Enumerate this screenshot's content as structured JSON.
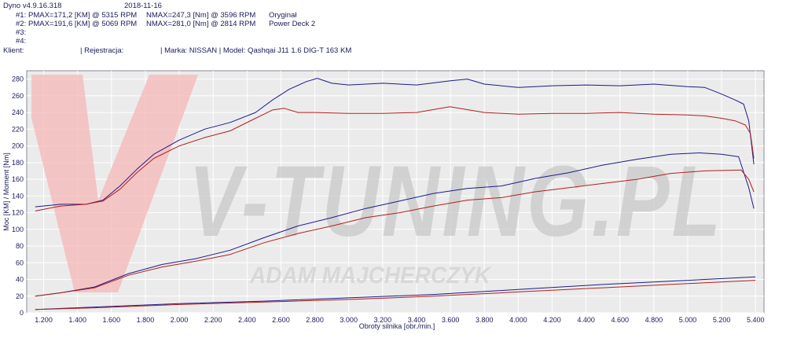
{
  "header": {
    "app_version": "Dyno v4.9.16.318",
    "date": "2018-11-16",
    "runs": [
      {
        "label": "#1:",
        "pmax": "PMAX=171,2 [KM] @ 5315 RPM",
        "nmax": "NMAX=247,3 [Nm] @ 3596 RPM",
        "name": "Oryginał"
      },
      {
        "label": "#2:",
        "pmax": "PMAX=191,6 [KM] @ 5069 RPM",
        "nmax": "NMAX=281,0 [Nm] @ 2814 RPM",
        "name": "Power Deck 2"
      },
      {
        "label": "#3:",
        "pmax": "",
        "nmax": "",
        "name": ""
      },
      {
        "label": "#4:",
        "pmax": "",
        "nmax": "",
        "name": ""
      }
    ],
    "client_label": "Klient:",
    "registration_label": "| Rejestracja:",
    "make_model": "| Marka: NISSAN | Model: Qashqai J11 1.6 DIG-T 163 KM"
  },
  "watermark": {
    "brand": "V-TUNING.PL",
    "name": "ADAM MAJCHERCZYK"
  },
  "colors": {
    "run1": "#b02020",
    "run2": "#1c1c8a",
    "plot_bg": "#ebebeb",
    "grid": "#ffffff"
  },
  "chart_data": {
    "type": "line",
    "title": "",
    "xlabel": "Obroty silnika [obr./min.]",
    "ylabel": "Moc [KM] / Moment [Nm]",
    "xlim": [
      1100,
      5450
    ],
    "ylim": [
      0,
      290
    ],
    "x_ticks": [
      "1.200",
      "1.400",
      "1.600",
      "1.800",
      "2.000",
      "2.200",
      "2.400",
      "2.600",
      "2.800",
      "3.000",
      "3.200",
      "3.400",
      "3.600",
      "3.800",
      "4.000",
      "4.200",
      "4.400",
      "4.600",
      "4.800",
      "5.000",
      "5.200",
      "5.400"
    ],
    "y_ticks": [
      "0",
      "20",
      "40",
      "60",
      "80",
      "100",
      "120",
      "140",
      "160",
      "180",
      "200",
      "220",
      "240",
      "260",
      "280"
    ],
    "grid": true,
    "series": [
      {
        "name": "#2 Moment",
        "color": "#1c1c8a",
        "x": [
          1150,
          1300,
          1450,
          1550,
          1650,
          1750,
          1850,
          2000,
          2150,
          2300,
          2450,
          2550,
          2650,
          2750,
          2814,
          2900,
          3000,
          3200,
          3400,
          3600,
          3700,
          3800,
          4000,
          4200,
          4400,
          4600,
          4800,
          5000,
          5100,
          5200,
          5280,
          5330,
          5360,
          5390
        ],
        "y": [
          127,
          130,
          130,
          135,
          152,
          172,
          190,
          207,
          220,
          228,
          240,
          255,
          268,
          277,
          281,
          275,
          273,
          275,
          273,
          278,
          280,
          274,
          270,
          272,
          273,
          272,
          274,
          271,
          270,
          262,
          255,
          250,
          230,
          178
        ]
      },
      {
        "name": "#1 Moment",
        "color": "#b02020",
        "x": [
          1150,
          1300,
          1450,
          1550,
          1650,
          1750,
          1850,
          2000,
          2150,
          2300,
          2450,
          2550,
          2620,
          2700,
          2800,
          3000,
          3200,
          3400,
          3596,
          3800,
          4000,
          4200,
          4400,
          4600,
          4800,
          5000,
          5100,
          5200,
          5280,
          5340,
          5370,
          5390
        ],
        "y": [
          122,
          128,
          130,
          134,
          148,
          168,
          185,
          200,
          210,
          218,
          233,
          243,
          245,
          240,
          240,
          239,
          239,
          240,
          247,
          240,
          238,
          239,
          239,
          240,
          238,
          237,
          236,
          233,
          230,
          225,
          215,
          185
        ]
      },
      {
        "name": "#2 Moc",
        "color": "#1c1c8a",
        "x": [
          1150,
          1300,
          1500,
          1700,
          1900,
          2100,
          2300,
          2500,
          2700,
          2900,
          3100,
          3300,
          3500,
          3700,
          3900,
          4100,
          4300,
          4500,
          4700,
          4900,
          5069,
          5200,
          5300,
          5360,
          5390
        ],
        "y": [
          20,
          24,
          31,
          47,
          58,
          65,
          75,
          90,
          104,
          114,
          125,
          134,
          143,
          149,
          152,
          161,
          168,
          177,
          184,
          190,
          191.6,
          190,
          187,
          150,
          125
        ]
      },
      {
        "name": "#1 Moc",
        "color": "#b02020",
        "x": [
          1150,
          1300,
          1500,
          1700,
          1900,
          2100,
          2300,
          2500,
          2700,
          2900,
          3100,
          3300,
          3500,
          3700,
          3900,
          4100,
          4300,
          4500,
          4700,
          4900,
          5100,
          5315,
          5360,
          5390
        ],
        "y": [
          20,
          24,
          30,
          45,
          55,
          62,
          70,
          84,
          95,
          104,
          114,
          120,
          128,
          135,
          138,
          145,
          150,
          155,
          160,
          167,
          170,
          171.2,
          160,
          145
        ]
      },
      {
        "name": "#2 Straty",
        "color": "#1c1c8a",
        "x": [
          1150,
          1500,
          2000,
          2500,
          3000,
          3500,
          4000,
          4500,
          5000,
          5400
        ],
        "y": [
          4,
          7,
          11,
          14,
          18,
          22,
          28,
          34,
          39,
          43
        ]
      },
      {
        "name": "#1 Straty",
        "color": "#b02020",
        "x": [
          1150,
          1500,
          2000,
          2500,
          3000,
          3500,
          4000,
          4500,
          5000,
          5400
        ],
        "y": [
          4,
          6,
          10,
          13,
          16,
          20,
          25,
          30,
          35,
          39
        ]
      }
    ]
  }
}
